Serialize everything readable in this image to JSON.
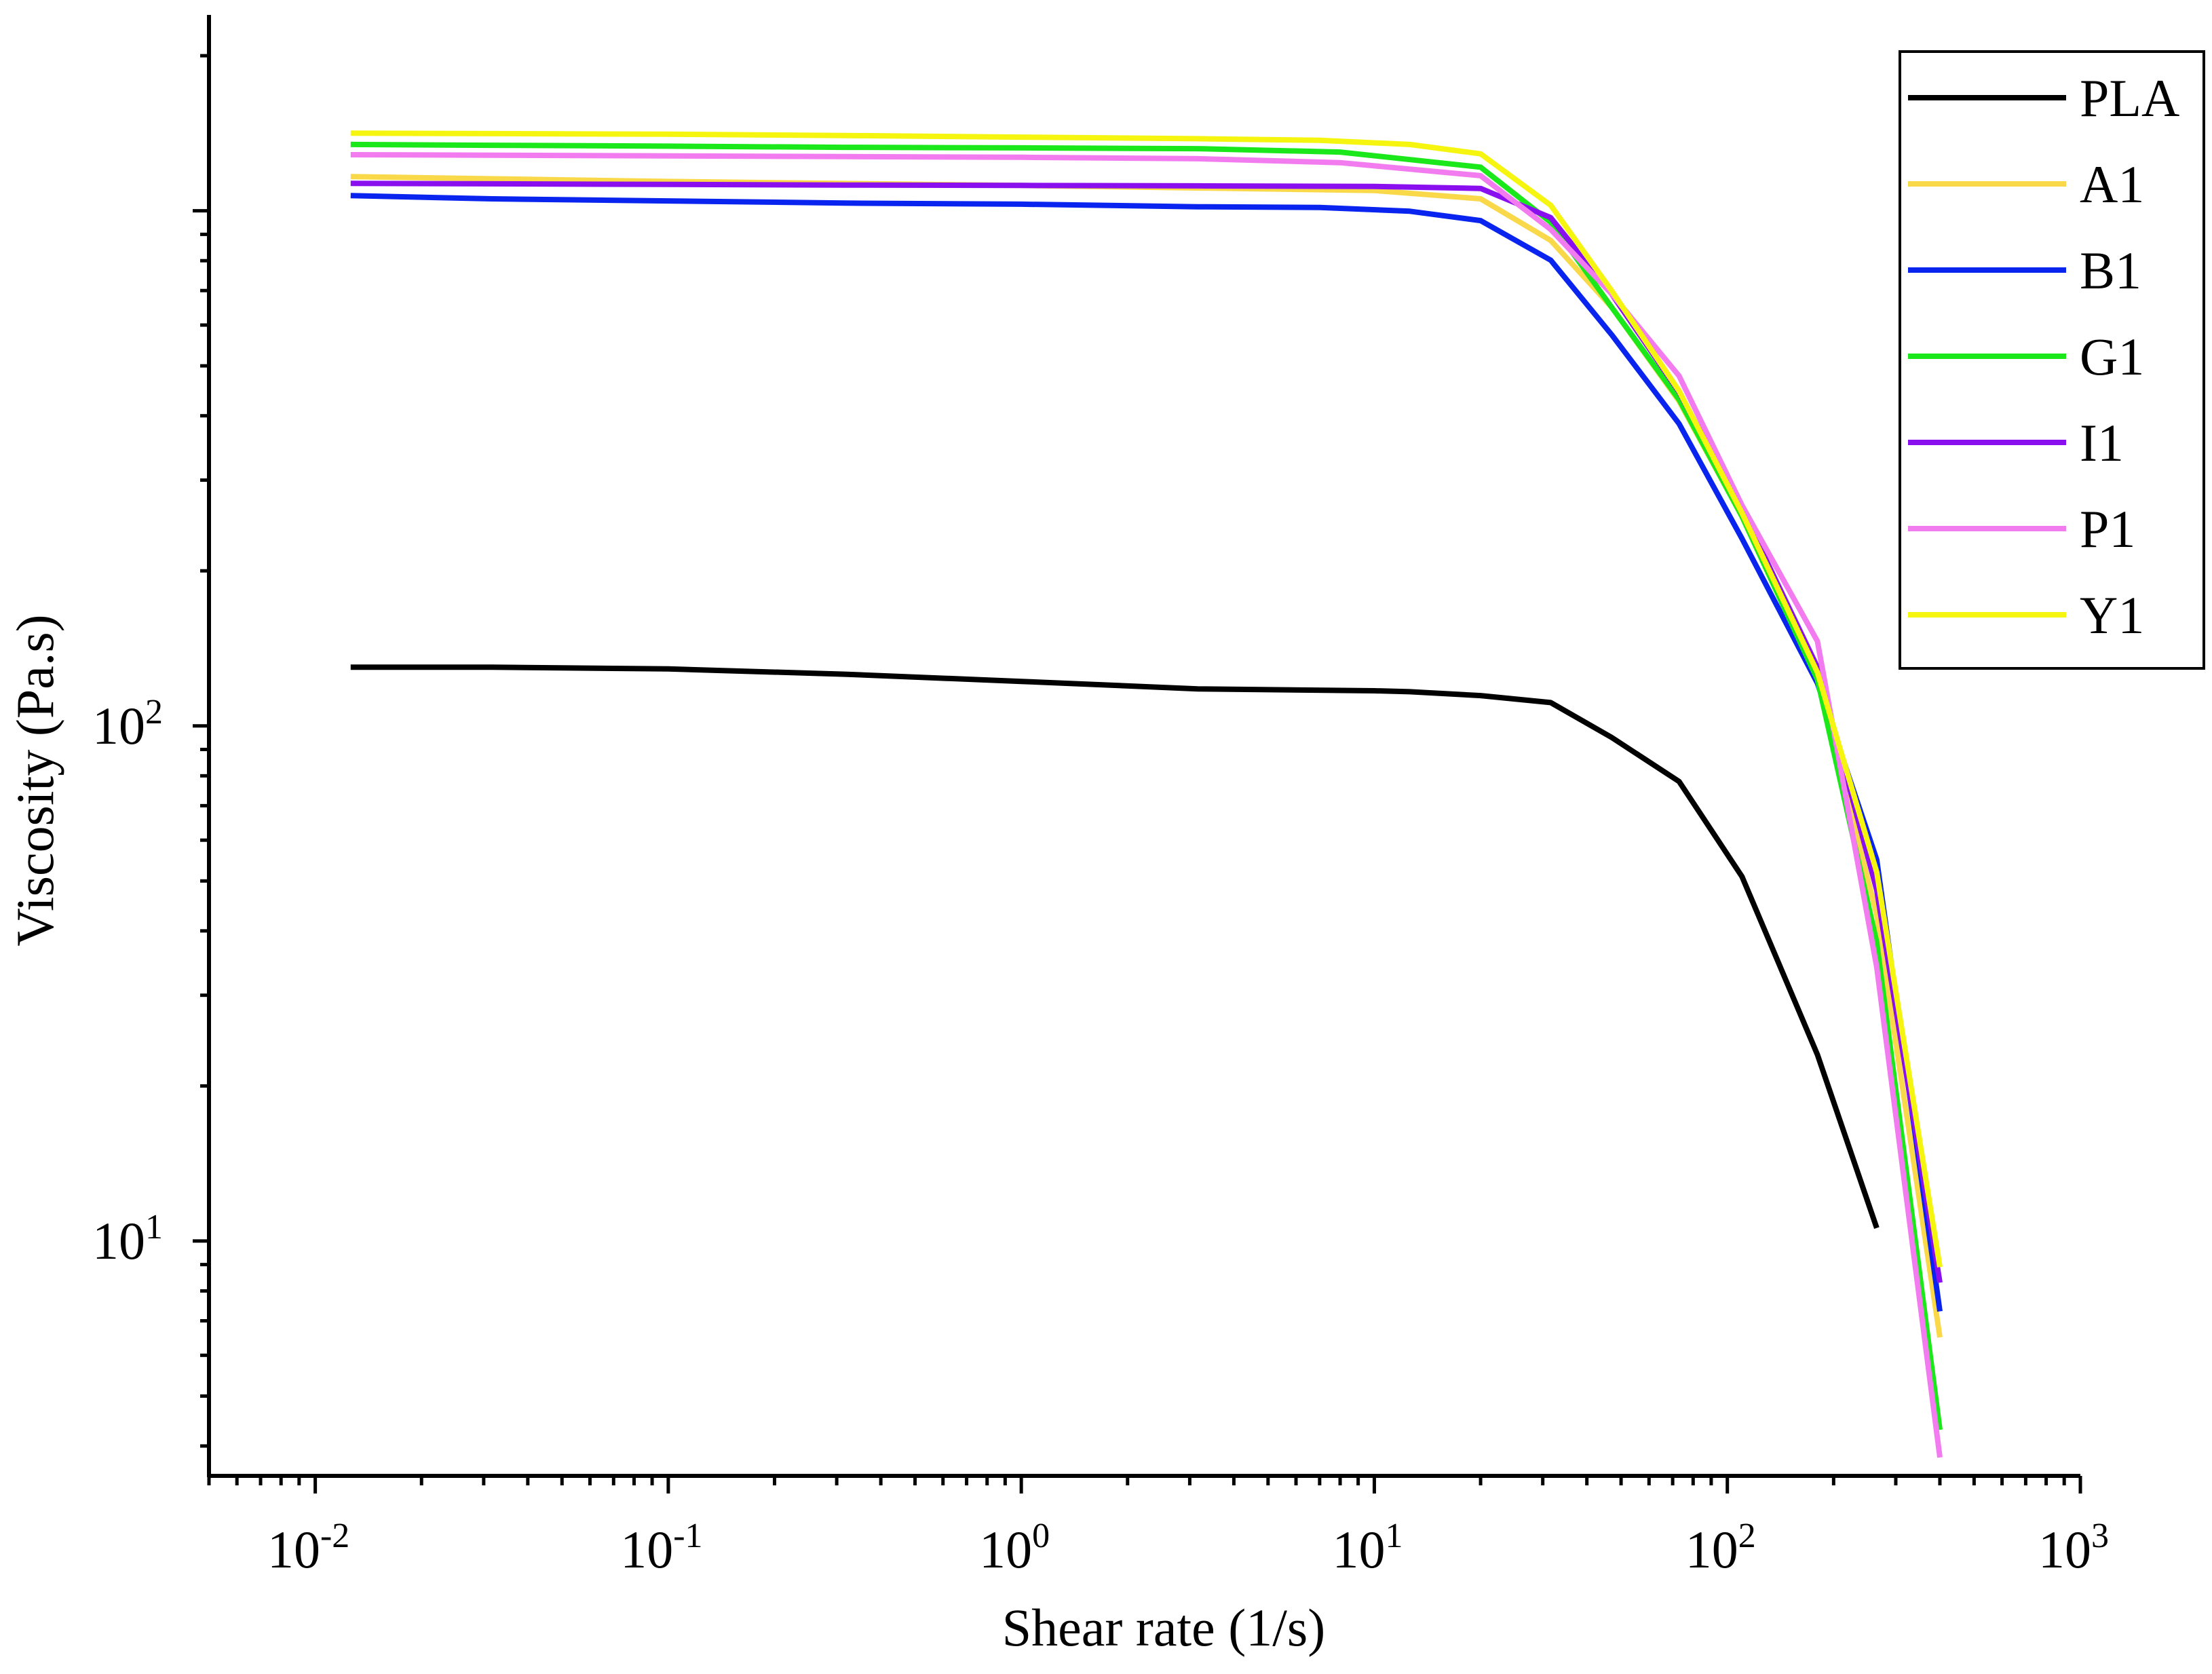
{
  "chart_data": {
    "type": "line",
    "xscale": "log",
    "yscale": "log",
    "xlabel": "Shear rate (1/s)",
    "ylabel": "Viscosity (Pa.s)",
    "xlim": [
      0.005,
      1000
    ],
    "ylim": [
      3.5,
      2400
    ],
    "x_ticks": [
      {
        "value": 0.01,
        "base": "10",
        "exp": "-2"
      },
      {
        "value": 0.1,
        "base": "10",
        "exp": "-1"
      },
      {
        "value": 1,
        "base": "10",
        "exp": "0"
      },
      {
        "value": 10,
        "base": "10",
        "exp": "1"
      },
      {
        "value": 100,
        "base": "10",
        "exp": "2"
      },
      {
        "value": 1000,
        "base": "10",
        "exp": "3"
      }
    ],
    "y_ticks": [
      {
        "value": 10,
        "base": "10",
        "exp": "1"
      },
      {
        "value": 100,
        "base": "10",
        "exp": "2"
      }
    ],
    "legend_position": "top-right",
    "series": [
      {
        "name": "PLA",
        "color": "#000000",
        "x": [
          0.0126,
          0.0316,
          0.1,
          0.316,
          1,
          3.16,
          10,
          12.6,
          20,
          31.6,
          47,
          73,
          110,
          180,
          265
        ],
        "y": [
          130,
          130,
          129,
          126,
          122,
          118,
          117,
          116.5,
          114.5,
          111,
          95,
          78,
          51,
          23,
          10.6
        ]
      },
      {
        "name": "A1",
        "color": "#F9D84A",
        "x": [
          0.0126,
          0.1,
          1,
          10,
          20,
          31.6,
          47,
          73,
          110,
          180,
          265,
          400
        ],
        "y": [
          1165,
          1140,
          1120,
          1095,
          1055,
          876,
          650,
          427,
          255,
          123,
          43,
          6.5
        ]
      },
      {
        "name": "B1",
        "color": "#0A24F0",
        "x": [
          0.0126,
          0.0316,
          0.1,
          0.316,
          1,
          3.16,
          7,
          12.6,
          20,
          31.6,
          47,
          73,
          110,
          180,
          265,
          400
        ],
        "y": [
          1070,
          1055,
          1045,
          1035,
          1030,
          1018,
          1015,
          998,
          957,
          802,
          575,
          386,
          231,
          121,
          55,
          7.3
        ]
      },
      {
        "name": "G1",
        "color": "#1BE81B",
        "x": [
          0.0126,
          0.0316,
          0.1,
          0.316,
          1,
          3.16,
          8,
          20,
          31.6,
          47,
          73,
          110,
          180,
          265,
          400
        ],
        "y": [
          1345,
          1340,
          1335,
          1328,
          1325,
          1320,
          1300,
          1215,
          950,
          650,
          430,
          255,
          123,
          38,
          4.3
        ]
      },
      {
        "name": "I1",
        "color": "#8A0FEE",
        "x": [
          0.0126,
          0.0316,
          0.1,
          0.316,
          1,
          3.16,
          10,
          20,
          31.6,
          47,
          73,
          110,
          180,
          265,
          400
        ],
        "y": [
          1130,
          1128,
          1125,
          1122,
          1120,
          1118,
          1115,
          1105,
          970,
          690,
          445,
          263,
          130,
          48,
          8.3
        ]
      },
      {
        "name": "P1",
        "color": "#F27CEF",
        "x": [
          0.0126,
          0.0316,
          0.1,
          0.316,
          1,
          3.16,
          8,
          20,
          31.6,
          47,
          73,
          110,
          180,
          265,
          400
        ],
        "y": [
          1285,
          1282,
          1278,
          1274,
          1270,
          1262,
          1240,
          1170,
          920,
          690,
          478,
          268,
          146,
          34,
          3.8
        ]
      },
      {
        "name": "Y1",
        "color": "#F5F50F",
        "x": [
          0.0126,
          0.0316,
          0.1,
          0.316,
          1,
          3.16,
          7,
          12.6,
          20,
          31.6,
          47,
          73,
          110,
          180,
          265,
          400
        ],
        "y": [
          1415,
          1412,
          1408,
          1400,
          1390,
          1380,
          1370,
          1345,
          1290,
          1025,
          700,
          447,
          259,
          127,
          52,
          8.9
        ]
      }
    ]
  }
}
